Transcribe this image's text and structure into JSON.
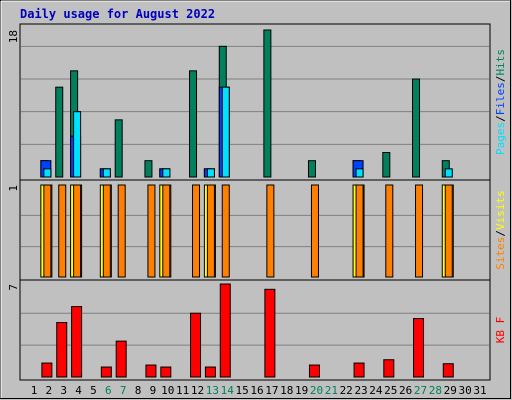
{
  "title": "Daily usage for August 2022",
  "chart_data": [
    {
      "type": "bar",
      "ylim": [
        0,
        18
      ],
      "yticks": [
        18
      ],
      "grid": [
        4,
        8,
        12,
        16
      ],
      "legend_separator": "/",
      "series": [
        {
          "name": "Hits",
          "color": "#00805c",
          "values": [
            0,
            2,
            11,
            13,
            0,
            1,
            7,
            0,
            2,
            1,
            0,
            13,
            1,
            16,
            0,
            0,
            18,
            0,
            0,
            2,
            0,
            0,
            2,
            0,
            3,
            0,
            12,
            0,
            2,
            0,
            0
          ]
        },
        {
          "name": "Files",
          "color": "#0040ff",
          "values": [
            0,
            2,
            0,
            5,
            0,
            1,
            0,
            0,
            0,
            1,
            0,
            0,
            1,
            11,
            0,
            0,
            0,
            0,
            0,
            0,
            0,
            0,
            2,
            0,
            0,
            0,
            0,
            0,
            0,
            0,
            0
          ]
        },
        {
          "name": "Pages",
          "color": "#00e0ff",
          "values": [
            0,
            1,
            0,
            8,
            0,
            1,
            0,
            0,
            0,
            1,
            0,
            0,
            1,
            11,
            0,
            0,
            0,
            0,
            0,
            0,
            0,
            0,
            1,
            0,
            0,
            0,
            0,
            0,
            1,
            0,
            0
          ]
        }
      ]
    },
    {
      "type": "bar",
      "ylim": [
        0,
        1
      ],
      "yticks": [
        1
      ],
      "grid": [
        0.33,
        0.67
      ],
      "legend_separator": "/",
      "series": [
        {
          "name": "Visits",
          "color": "#ffff00",
          "values": [
            0,
            1,
            0,
            1,
            0,
            1,
            0,
            0,
            0,
            1,
            0,
            0,
            1,
            0,
            0,
            0,
            0,
            0,
            0,
            0,
            0,
            0,
            1,
            0,
            0,
            0,
            0,
            0,
            1,
            0,
            0
          ]
        },
        {
          "name": "Sites",
          "color": "#ff8000",
          "values": [
            0,
            1,
            1,
            1,
            0,
            1,
            1,
            0,
            1,
            1,
            0,
            1,
            1,
            1,
            0,
            0,
            1,
            0,
            0,
            1,
            0,
            0,
            1,
            0,
            1,
            0,
            1,
            0,
            1,
            0,
            0
          ]
        }
      ]
    },
    {
      "type": "bar",
      "ylim": [
        0,
        7
      ],
      "yticks": [
        7
      ],
      "grid": [
        2.4,
        4.8
      ],
      "categories": [
        "1",
        "2",
        "3",
        "4",
        "5",
        "6",
        "7",
        "8",
        "9",
        "10",
        "11",
        "12",
        "13",
        "14",
        "15",
        "16",
        "17",
        "18",
        "19",
        "20",
        "21",
        "22",
        "23",
        "24",
        "25",
        "26",
        "27",
        "28",
        "29",
        "30",
        "31"
      ],
      "category_colors": [
        "#000000",
        "#000000",
        "#000000",
        "#000000",
        "#000000",
        "#00805c",
        "#00805c",
        "#000000",
        "#000000",
        "#000000",
        "#000000",
        "#000000",
        "#00805c",
        "#00805c",
        "#000000",
        "#000000",
        "#000000",
        "#000000",
        "#000000",
        "#00805c",
        "#00805c",
        "#000000",
        "#000000",
        "#000000",
        "#000000",
        "#000000",
        "#00805c",
        "#00805c",
        "#000000",
        "#000000",
        "#000000"
      ],
      "series": [
        {
          "name": "KB F",
          "color": "#ff0000",
          "values": [
            0,
            1.05,
            4.1,
            5.3,
            0,
            0.75,
            2.7,
            0,
            0.9,
            0.75,
            0,
            4.8,
            0.75,
            7,
            0,
            0,
            6.6,
            0,
            0,
            0.9,
            0,
            0,
            1.05,
            0,
            1.3,
            0,
            4.4,
            0,
            1,
            0,
            0
          ]
        }
      ]
    }
  ]
}
